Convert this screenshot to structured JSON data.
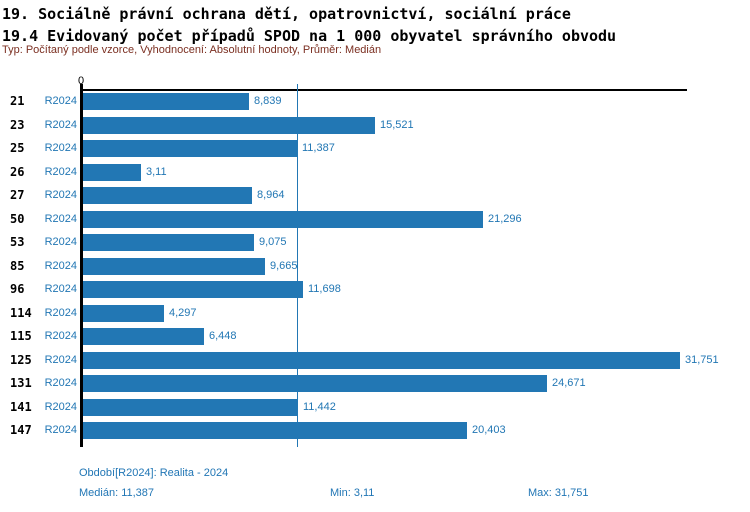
{
  "header": {
    "title": "19. Sociálně právní ochrana dětí, opatrovnictví, sociální práce",
    "subtitle": "19.4 Evidovaný počet případů SPOD na 1 000 obyvatel správního obvodu",
    "meta": "Typ: Počítaný podle vzorce, Vyhodnocení: Absolutní hodnoty, Průměr: Medián"
  },
  "chart_data": {
    "type": "bar",
    "orientation": "horizontal",
    "title": "19.4 Evidovaný počet případů SPOD na 1 000 obyvatel správního obvodu",
    "categories": [
      "21",
      "23",
      "25",
      "26",
      "27",
      "50",
      "53",
      "85",
      "96",
      "114",
      "115",
      "125",
      "131",
      "141",
      "147"
    ],
    "series_label": "R2024",
    "values": [
      8.839,
      15.521,
      11.387,
      3.11,
      8.964,
      21.296,
      9.075,
      9.665,
      11.698,
      4.297,
      6.448,
      31.751,
      24.671,
      11.442,
      20.403
    ],
    "value_labels": [
      "8,839",
      "15,521",
      "11,387",
      "3,11",
      "8,964",
      "21,296",
      "9,075",
      "9,665",
      "11,698",
      "4,297",
      "6,448",
      "31,751",
      "24,671",
      "11,442",
      "20,403"
    ],
    "axis": {
      "origin_label": "0",
      "xmin": 0,
      "xmax": 32.1,
      "grid": false
    },
    "median_line": {
      "value": 11.387,
      "label": "11,387"
    },
    "legend_position": "none",
    "colors": {
      "bar": "#2277b4",
      "value_text": "#2277b4",
      "median_line": "#2277b4",
      "axis": "#000000",
      "meta_text": "#7b2f21"
    }
  },
  "footer": {
    "period": "Období[R2024]: Realita - 2024",
    "median": "Medián: 11,387",
    "min": "Min: 3,11",
    "max": "Max: 31,751"
  }
}
